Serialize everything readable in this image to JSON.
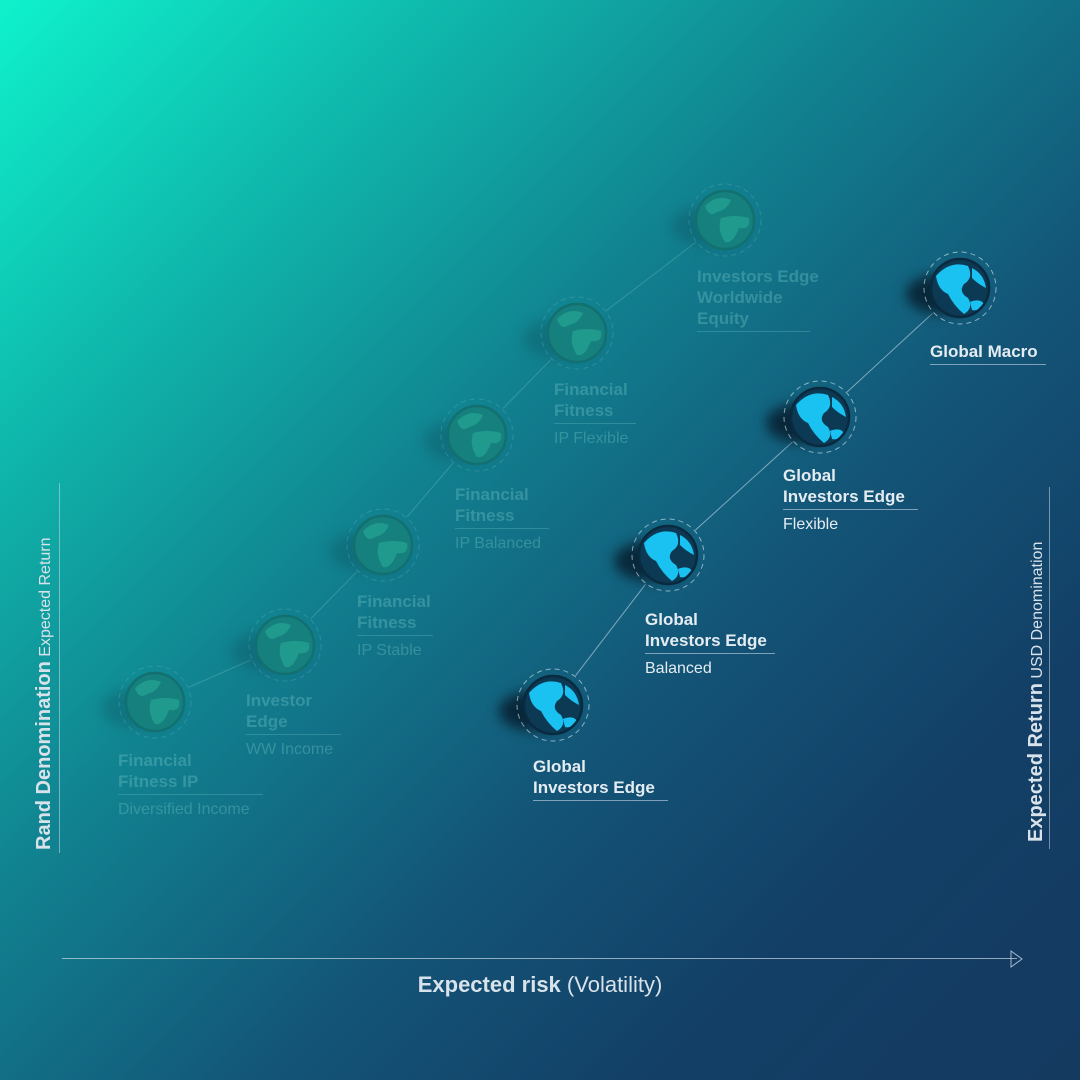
{
  "axes": {
    "x_title_bold": "Expected risk",
    "x_title_rest": "(Volatility)",
    "left_bold": "Rand Denomination",
    "left_rest": "Expected Return",
    "right_bold": "Expected Return",
    "right_rest": "USD Denomination"
  },
  "rand_series": [
    {
      "title": "Financial Fitness IP",
      "sub": "Diversified Income"
    },
    {
      "title": "Investor Edge",
      "sub": "WW Income"
    },
    {
      "title": "Financial Fitness",
      "sub": "IP Stable"
    },
    {
      "title": "Financial Fitness",
      "sub": "IP Balanced"
    },
    {
      "title": "Financial Fitness",
      "sub": "IP Flexible"
    },
    {
      "title": "Investors Edge Worldwide Equity",
      "sub": ""
    }
  ],
  "usd_series": [
    {
      "title": "Global Investors Edge",
      "sub": ""
    },
    {
      "title": "Global Investors Edge",
      "sub": "Balanced"
    },
    {
      "title": "Global Investors Edge",
      "sub": "Flexible"
    },
    {
      "title": "Global Macro",
      "sub": ""
    }
  ],
  "colors": {
    "faded_globe": "#1a8f8a",
    "active_land": "#1ac2f2",
    "active_ocean": "#0c3a55"
  }
}
